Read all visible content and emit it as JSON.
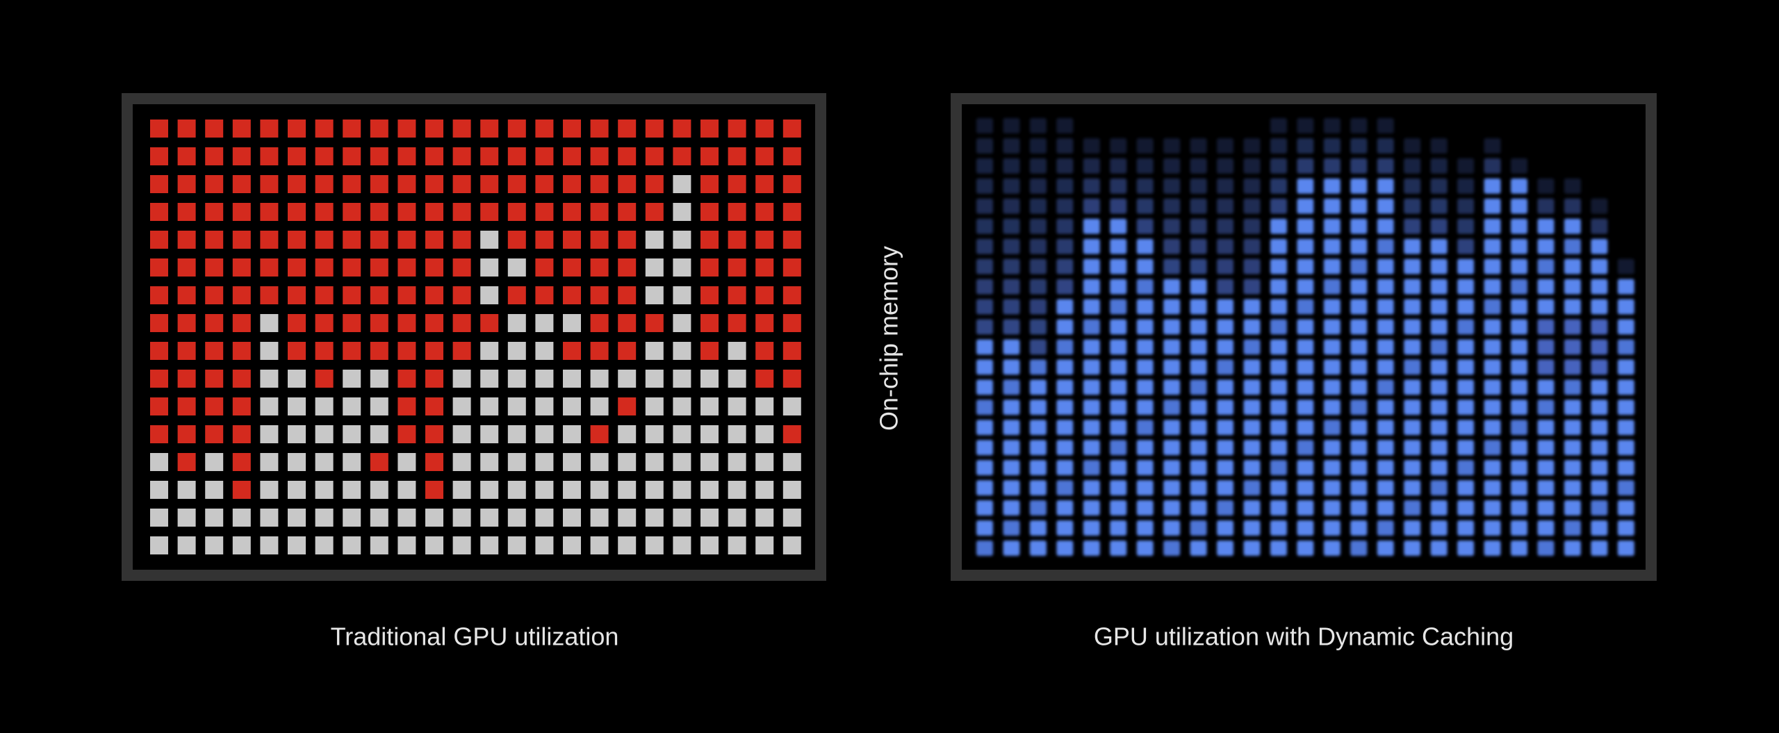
{
  "left_panel": {
    "caption": "Traditional GPU utilization"
  },
  "right_panel": {
    "caption": "GPU utilization with Dynamic Caching"
  },
  "axis_label": "On-chip memory"
}
